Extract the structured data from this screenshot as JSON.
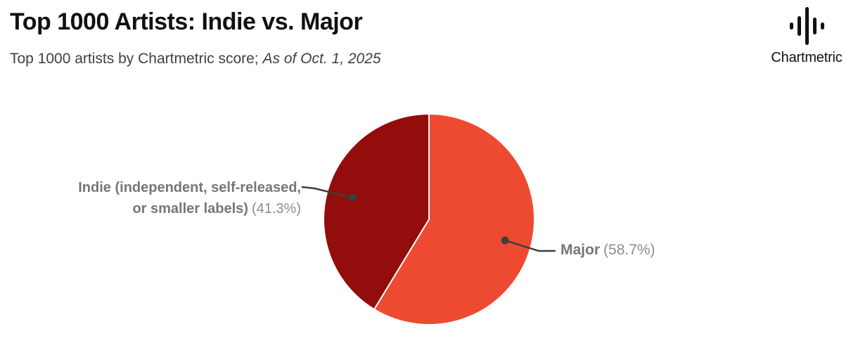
{
  "header": {
    "title": "Top 1000 Artists: Indie vs. Major",
    "subtitle_regular": "Top 1000 artists by Chartmetric score; ",
    "subtitle_italic": "As of Oct. 1, 2025"
  },
  "logo": {
    "text": "Chartmetric",
    "icon": "chartmetric-waveform-icon"
  },
  "chart_data": {
    "type": "pie",
    "title": "Top 1000 Artists: Indie vs. Major",
    "subtitle": "Top 1000 artists by Chartmetric score; As of Oct. 1, 2025",
    "start_angle_deg": 0,
    "direction": "clockwise",
    "legend_position": "outside-callouts",
    "slices": [
      {
        "key": "major",
        "label": "Major",
        "value_pct": 58.7,
        "display_pct": "(58.7%)",
        "color": "#EE4A31"
      },
      {
        "key": "indie",
        "label": "Indie (independent, self-released, or smaller labels)",
        "value_pct": 41.3,
        "display_pct": "(41.3%)",
        "color": "#930D0C"
      }
    ]
  },
  "labels": {
    "indie": {
      "line1": "Indie (independent, self-released,",
      "line2": "or smaller labels)",
      "pct": "(41.3%)"
    },
    "major": {
      "name": "Major",
      "pct": "(58.7%)"
    }
  },
  "colors": {
    "major_slice": "#EE4A31",
    "indie_slice": "#930D0C",
    "leader_line": "#3F3F3F",
    "title_text": "#111111",
    "subtitle_text": "#404040",
    "label_bold_text": "#767676",
    "label_pct_text": "#8C8C8C"
  }
}
